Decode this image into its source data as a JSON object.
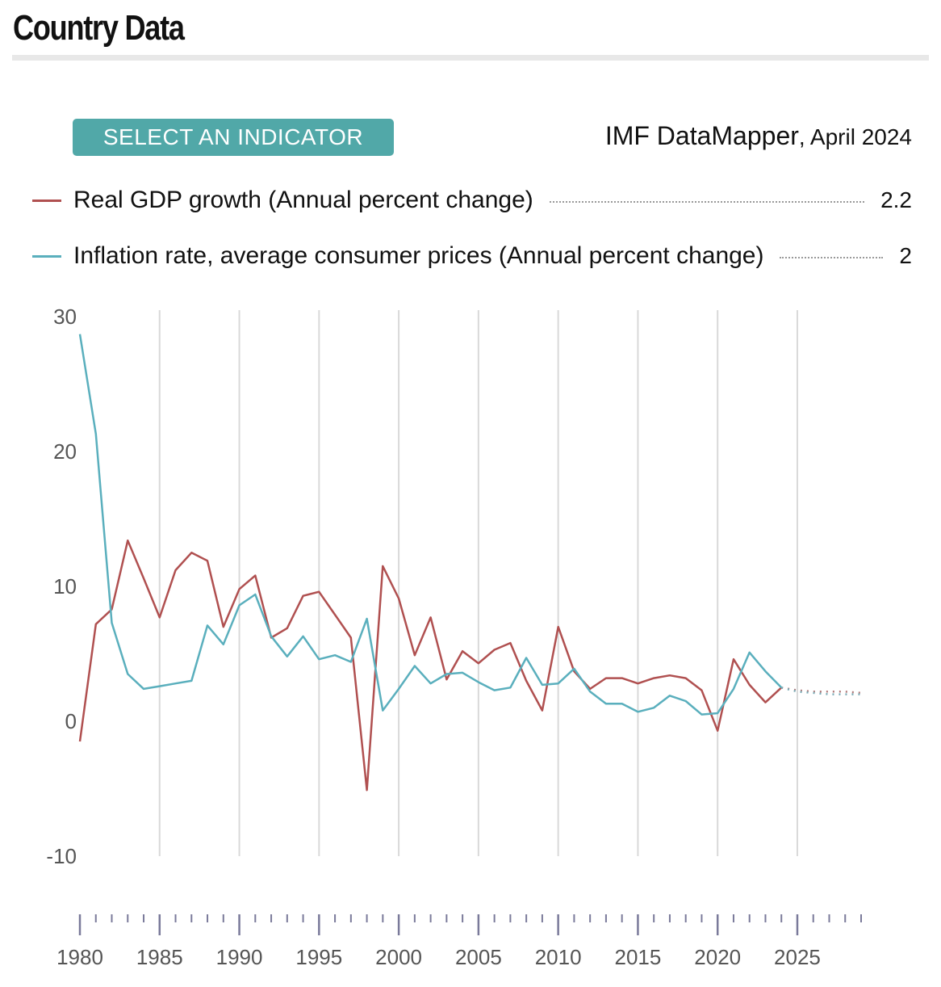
{
  "header": {
    "title": "Country Data"
  },
  "controls": {
    "indicator_button": "SELECT AN INDICATOR"
  },
  "source": {
    "name": "IMF DataMapper",
    "date": ", April 2024"
  },
  "legend": [
    {
      "label": "Real GDP growth (Annual percent change)",
      "value": "2.2",
      "color": "#b05050"
    },
    {
      "label": "Inflation rate, average consumer prices (Annual percent change)",
      "value": "2",
      "color": "#5aafbd"
    }
  ],
  "chart_data": {
    "type": "line",
    "ylim": [
      -10,
      30
    ],
    "yticks": [
      -10,
      0,
      10,
      20,
      30
    ],
    "xlim": [
      1980,
      2029
    ],
    "xticks": [
      1980,
      1985,
      1990,
      1995,
      2000,
      2005,
      2010,
      2015,
      2020,
      2025
    ],
    "grid": "vertical",
    "forecast_start": 2024,
    "series": [
      {
        "name": "Real GDP growth (Annual percent change)",
        "color": "#b05050",
        "x": [
          1980,
          1981,
          1982,
          1983,
          1984,
          1985,
          1986,
          1987,
          1988,
          1989,
          1990,
          1991,
          1992,
          1993,
          1994,
          1995,
          1996,
          1997,
          1998,
          1999,
          2000,
          2001,
          2002,
          2003,
          2004,
          2005,
          2006,
          2007,
          2008,
          2009,
          2010,
          2011,
          2012,
          2013,
          2014,
          2015,
          2016,
          2017,
          2018,
          2019,
          2020,
          2021,
          2022,
          2023,
          2024,
          2025,
          2026,
          2027,
          2028,
          2029
        ],
        "values": [
          -1.5,
          7.2,
          8.3,
          13.4,
          10.6,
          7.7,
          11.2,
          12.5,
          11.9,
          7.0,
          9.8,
          10.8,
          6.2,
          6.9,
          9.3,
          9.6,
          7.9,
          6.2,
          -5.1,
          11.5,
          9.1,
          4.9,
          7.7,
          3.1,
          5.2,
          4.3,
          5.3,
          5.8,
          3.0,
          0.8,
          7.0,
          3.7,
          2.4,
          3.2,
          3.2,
          2.8,
          3.2,
          3.4,
          3.2,
          2.3,
          -0.7,
          4.6,
          2.7,
          1.4,
          2.5,
          2.3,
          2.2,
          2.2,
          2.2,
          2.1
        ]
      },
      {
        "name": "Inflation rate, average consumer prices (Annual percent change)",
        "color": "#5aafbd",
        "x": [
          1980,
          1981,
          1982,
          1983,
          1984,
          1985,
          1986,
          1987,
          1988,
          1989,
          1990,
          1991,
          1992,
          1993,
          1994,
          1995,
          1996,
          1997,
          1998,
          1999,
          2000,
          2001,
          2002,
          2003,
          2004,
          2005,
          2006,
          2007,
          2008,
          2009,
          2010,
          2011,
          2012,
          2013,
          2014,
          2015,
          2016,
          2017,
          2018,
          2019,
          2020,
          2021,
          2022,
          2023,
          2024,
          2025,
          2026,
          2027,
          2028,
          2029
        ],
        "values": [
          28.7,
          21.3,
          7.3,
          3.5,
          2.4,
          2.6,
          2.8,
          3.0,
          7.1,
          5.7,
          8.6,
          9.4,
          6.3,
          4.8,
          6.3,
          4.6,
          4.9,
          4.4,
          7.6,
          0.8,
          2.4,
          4.1,
          2.8,
          3.5,
          3.6,
          2.9,
          2.3,
          2.5,
          4.7,
          2.7,
          2.8,
          3.9,
          2.2,
          1.3,
          1.3,
          0.7,
          1.0,
          1.9,
          1.5,
          0.5,
          0.6,
          2.4,
          5.1,
          3.7,
          2.5,
          2.2,
          2.1,
          2.0,
          2.0,
          2.0
        ]
      }
    ]
  }
}
